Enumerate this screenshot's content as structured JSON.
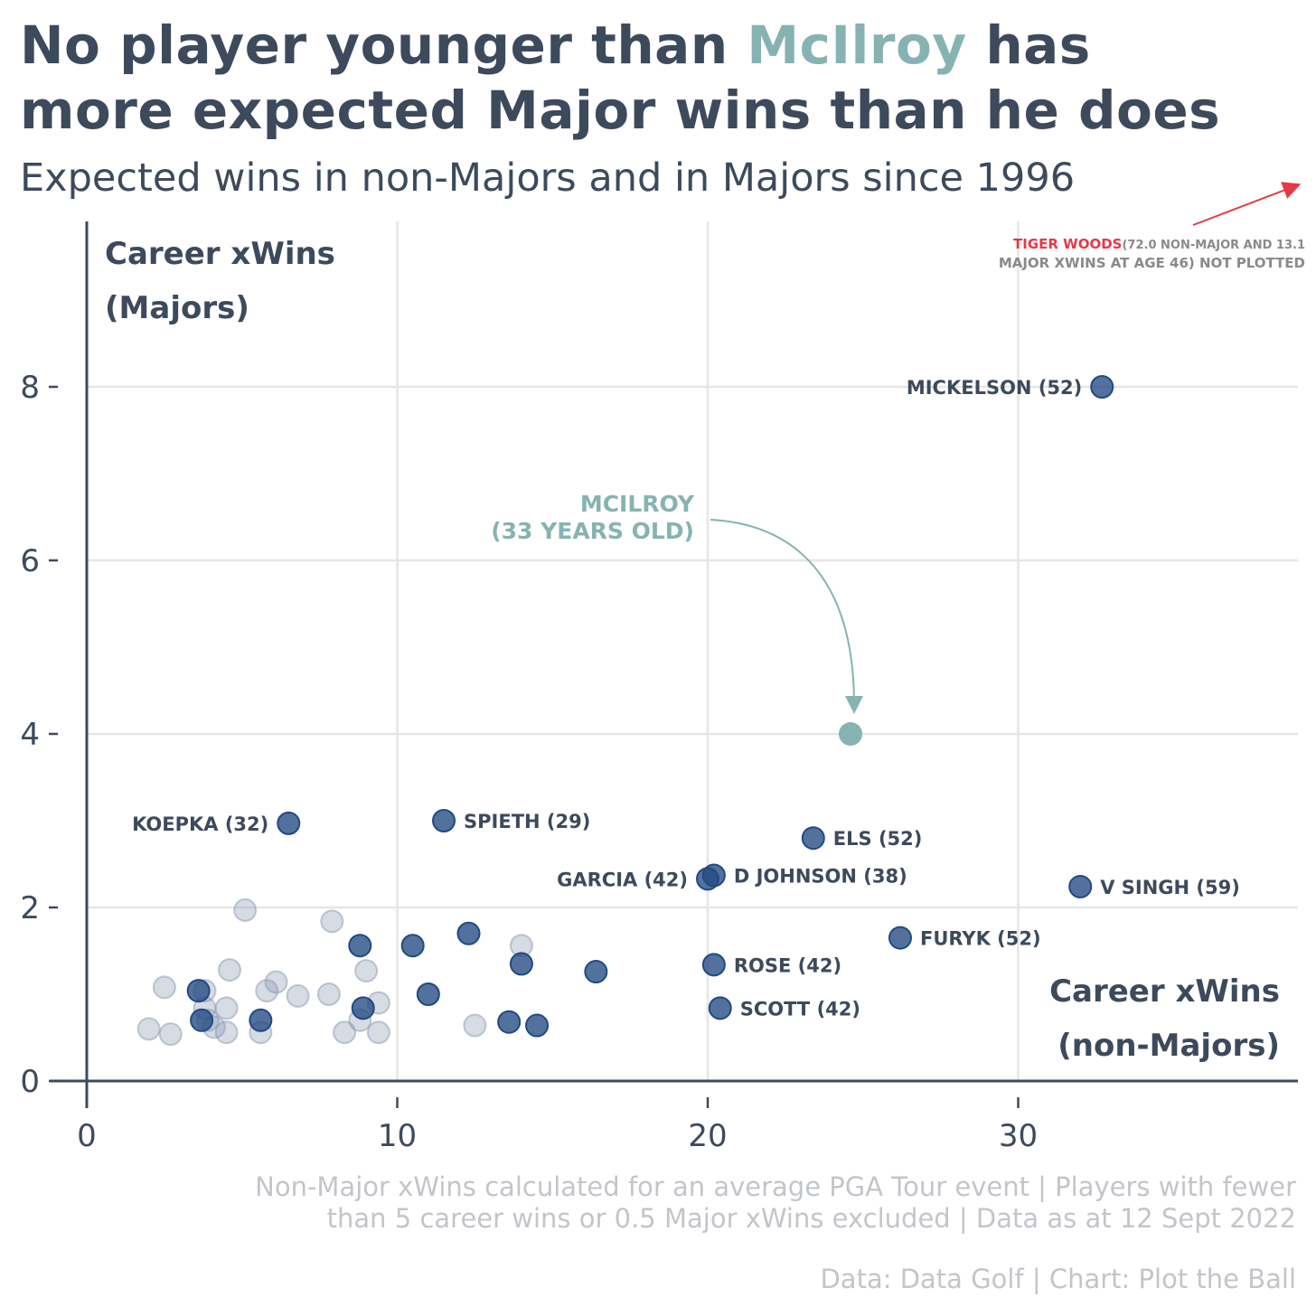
{
  "title": {
    "part1": "No player younger than ",
    "highlight": "McIlroy",
    "part2": " has",
    "line2": "more expected Major wins than he does"
  },
  "subtitle": "Expected wins in non-Majors and in Majors since 1996",
  "footnote": {
    "line1": "Non-Major xWins calculated for an average PGA Tour event | Players with fewer",
    "line2": "than 5 career wins or 0.5 Major xWins excluded | Data as at 12 Sept 2022"
  },
  "credit": "Data: Data Golf | Chart: Plot the Ball",
  "colors": {
    "accent": "#86b3b2",
    "dark": "#3d4a5c",
    "point": "#234982",
    "faded": "#8a97b2",
    "tiger": "#e63946",
    "note": "#8a8a8a"
  },
  "chart_data": {
    "type": "scatter",
    "ylabel_lines": [
      "Career xWins",
      "(Majors)"
    ],
    "xlabel_lines": [
      "Career xWins",
      "(non-Majors)"
    ],
    "xlim": [
      0,
      39
    ],
    "ylim": [
      0,
      9.5
    ],
    "xticks": [
      0,
      10,
      20,
      30
    ],
    "yticks": [
      0,
      2,
      4,
      6,
      8
    ],
    "grid": true,
    "labeled_points": [
      {
        "label": "MICKELSON (52)",
        "x": 32.7,
        "y": 8.0,
        "side": "left"
      },
      {
        "label": "KOEPKA (32)",
        "x": 6.5,
        "y": 2.97,
        "side": "left"
      },
      {
        "label": "SPIETH (29)",
        "x": 11.5,
        "y": 3.0,
        "side": "right"
      },
      {
        "label": "ELS (52)",
        "x": 23.4,
        "y": 2.8,
        "side": "right"
      },
      {
        "label": "GARCIA (42)",
        "x": 20.0,
        "y": 2.33,
        "side": "left"
      },
      {
        "label": "D JOHNSON (38)",
        "x": 20.2,
        "y": 2.37,
        "side": "right"
      },
      {
        "label": "V SINGH (59)",
        "x": 32.0,
        "y": 2.24,
        "side": "right"
      },
      {
        "label": "FURYK (52)",
        "x": 26.2,
        "y": 1.65,
        "side": "right"
      },
      {
        "label": "ROSE (42)",
        "x": 20.2,
        "y": 1.34,
        "side": "right"
      },
      {
        "label": "SCOTT (42)",
        "x": 20.4,
        "y": 0.84,
        "side": "right"
      }
    ],
    "other_points": [
      {
        "x": 3.6,
        "y": 1.04
      },
      {
        "x": 3.7,
        "y": 0.7
      },
      {
        "x": 5.6,
        "y": 0.7
      },
      {
        "x": 8.8,
        "y": 1.56
      },
      {
        "x": 8.9,
        "y": 0.84
      },
      {
        "x": 10.5,
        "y": 1.56
      },
      {
        "x": 11.0,
        "y": 1.0
      },
      {
        "x": 12.3,
        "y": 1.7
      },
      {
        "x": 14.0,
        "y": 1.35
      },
      {
        "x": 16.4,
        "y": 1.26
      },
      {
        "x": 13.6,
        "y": 0.68
      },
      {
        "x": 14.5,
        "y": 0.64
      }
    ],
    "faded_points": [
      {
        "x": 2.0,
        "y": 0.6
      },
      {
        "x": 2.5,
        "y": 1.08
      },
      {
        "x": 2.7,
        "y": 0.54
      },
      {
        "x": 3.8,
        "y": 1.04
      },
      {
        "x": 3.8,
        "y": 0.84
      },
      {
        "x": 3.9,
        "y": 0.7
      },
      {
        "x": 4.1,
        "y": 0.62
      },
      {
        "x": 4.5,
        "y": 0.84
      },
      {
        "x": 4.5,
        "y": 0.56
      },
      {
        "x": 4.6,
        "y": 1.28
      },
      {
        "x": 5.1,
        "y": 1.97
      },
      {
        "x": 5.6,
        "y": 0.56
      },
      {
        "x": 5.8,
        "y": 1.04
      },
      {
        "x": 6.1,
        "y": 1.14
      },
      {
        "x": 6.8,
        "y": 0.98
      },
      {
        "x": 7.8,
        "y": 1.0
      },
      {
        "x": 7.9,
        "y": 1.84
      },
      {
        "x": 8.3,
        "y": 0.56
      },
      {
        "x": 8.8,
        "y": 0.7
      },
      {
        "x": 9.0,
        "y": 1.27
      },
      {
        "x": 9.4,
        "y": 0.9
      },
      {
        "x": 9.4,
        "y": 0.56
      },
      {
        "x": 12.5,
        "y": 0.64
      },
      {
        "x": 14.0,
        "y": 1.56
      }
    ],
    "highlight_point": {
      "x": 24.6,
      "y": 4.0
    },
    "highlight_label_lines": [
      "MCILROY",
      "(33 YEARS OLD)"
    ],
    "offchart_note": {
      "name": "TIGER WOODS",
      "text_line1": "(72.0 NON-MAJOR AND 13.1",
      "text_line2": "MAJOR XWINS AT AGE 46) NOT PLOTTED"
    }
  }
}
